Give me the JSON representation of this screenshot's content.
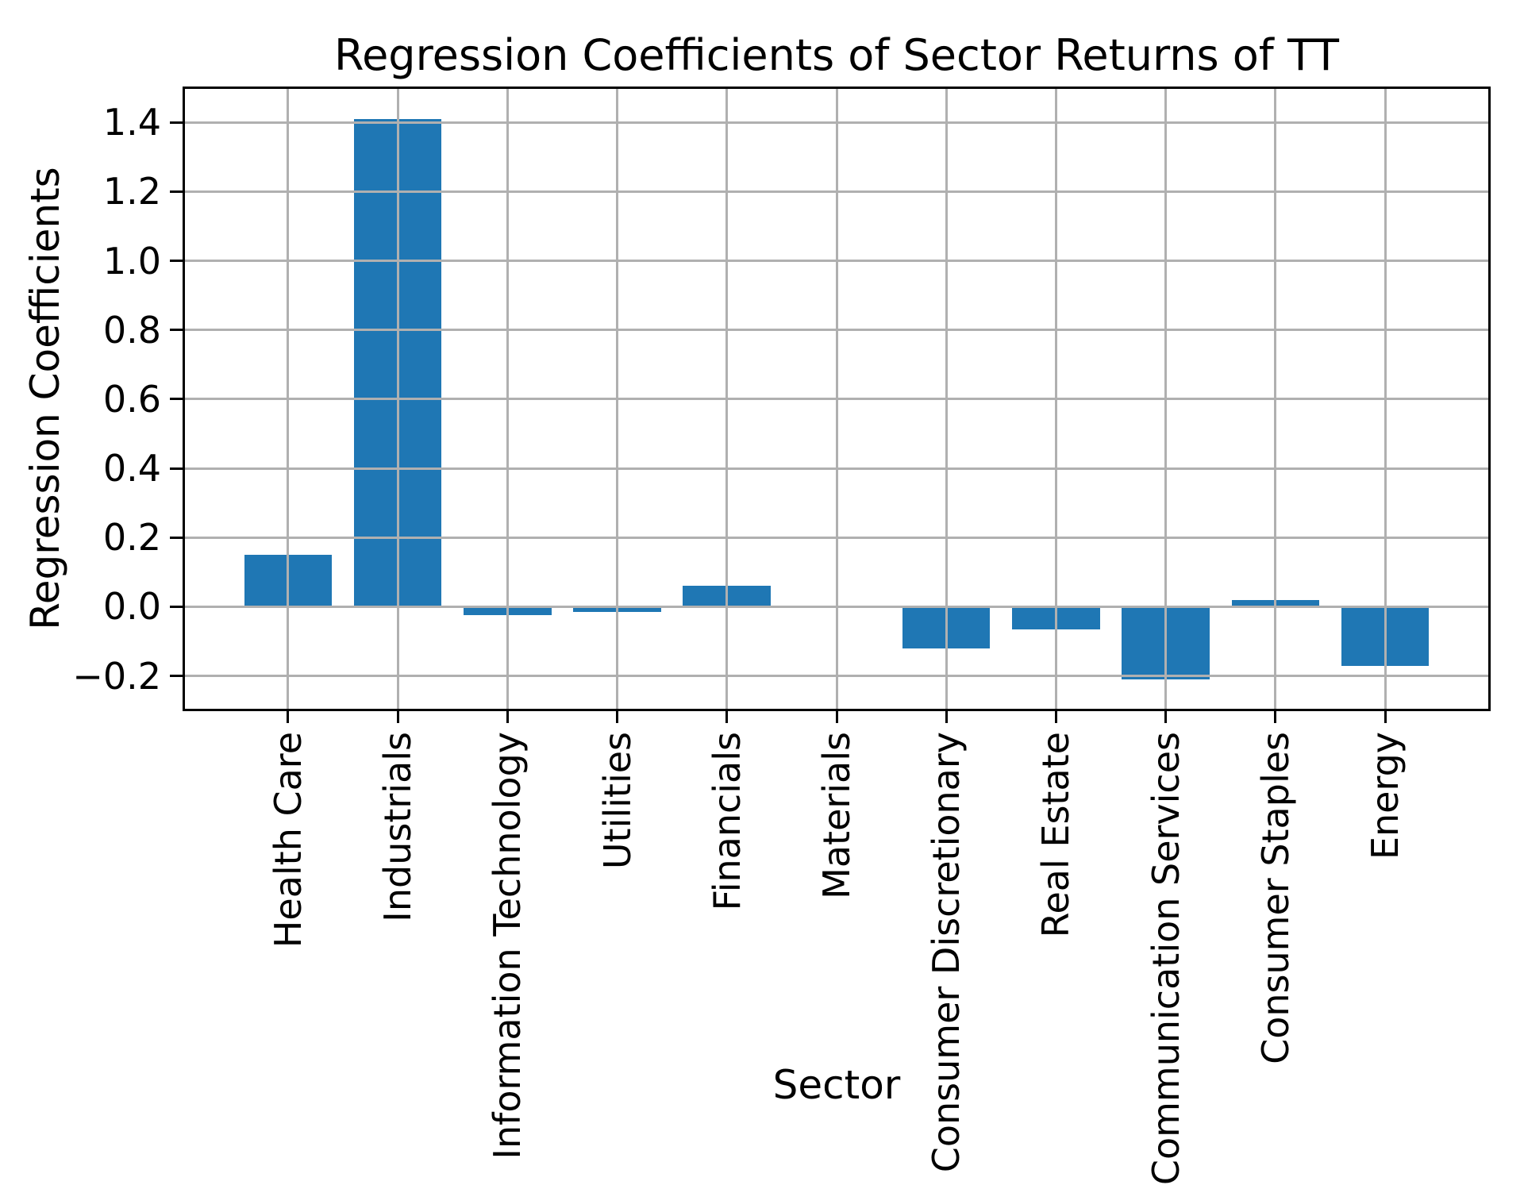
{
  "chart_data": {
    "type": "bar",
    "title": "Regression Coefficients of Sector Returns of TT",
    "xlabel": "Sector",
    "ylabel": "Regression Coefficients",
    "categories": [
      "Health Care",
      "Industrials",
      "Information Technology",
      "Utilities",
      "Financials",
      "Materials",
      "Consumer Discretionary",
      "Real Estate",
      "Communication Services",
      "Consumer Staples",
      "Energy"
    ],
    "values": [
      0.15,
      1.41,
      -0.025,
      -0.015,
      0.06,
      0.0,
      -0.12,
      -0.065,
      -0.21,
      0.02,
      -0.17
    ],
    "yticks": [
      1.4,
      1.2,
      1.0,
      0.8,
      0.6,
      0.4,
      0.2,
      0.0,
      -0.2
    ],
    "ytick_labels": [
      "1.4",
      "1.2",
      "1.0",
      "0.8",
      "0.6",
      "0.4",
      "0.2",
      "0.0",
      "−0.2"
    ],
    "ylim": [
      -0.295,
      1.497
    ],
    "grid": "both, drawn above bars",
    "legend_position": "none",
    "bar_color": "#1f77b4",
    "grid_color": "#b0b0b0",
    "spine_color": "#000000",
    "background_color": "#ffffff"
  }
}
